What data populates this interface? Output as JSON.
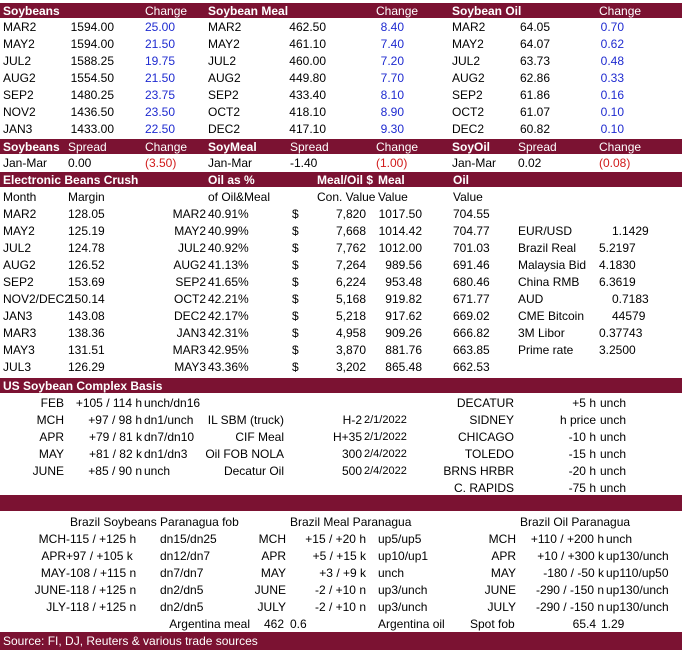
{
  "futures": {
    "headers": [
      "Soybeans",
      "Change",
      "Soybean Meal",
      "Change",
      "Soybean Oil",
      "Change"
    ],
    "soybeans": [
      [
        "MAR2",
        "1594.00",
        "25.00"
      ],
      [
        "MAY2",
        "1594.00",
        "21.50"
      ],
      [
        "JUL2",
        "1588.25",
        "19.75"
      ],
      [
        "AUG2",
        "1554.50",
        "21.50"
      ],
      [
        "SEP2",
        "1480.25",
        "23.75"
      ],
      [
        "NOV2",
        "1436.50",
        "23.50"
      ],
      [
        "JAN3",
        "1433.00",
        "22.50"
      ]
    ],
    "meal": [
      [
        "MAR2",
        "462.50",
        "8.40"
      ],
      [
        "MAY2",
        "461.10",
        "7.40"
      ],
      [
        "JUL2",
        "460.00",
        "7.20"
      ],
      [
        "AUG2",
        "449.80",
        "7.70"
      ],
      [
        "SEP2",
        "433.40",
        "8.10"
      ],
      [
        "OCT2",
        "418.10",
        "8.90"
      ],
      [
        "DEC2",
        "417.10",
        "9.30"
      ]
    ],
    "oil": [
      [
        "MAR2",
        "64.05",
        "0.70"
      ],
      [
        "MAY2",
        "64.07",
        "0.62"
      ],
      [
        "JUL2",
        "63.73",
        "0.48"
      ],
      [
        "AUG2",
        "62.86",
        "0.33"
      ],
      [
        "SEP2",
        "61.86",
        "0.16"
      ],
      [
        "OCT2",
        "61.07",
        "0.10"
      ],
      [
        "DEC2",
        "60.82",
        "0.10"
      ]
    ]
  },
  "spreads": {
    "headers": [
      "Soybeans",
      "Spread",
      "Change",
      "SoyMeal",
      "Spread",
      "Change",
      "SoyOil",
      "Spread",
      "Change"
    ],
    "row": [
      "Jan-Mar",
      "0.00",
      "(3.50)",
      "Jan-Mar",
      "-1.40",
      "(1.00)",
      "Jan-Mar",
      "0.02",
      "(0.08)"
    ]
  },
  "crush": {
    "title": "Electronic Beans Crush",
    "band_labels": [
      "Oil as %",
      "Meal/Oil $",
      "Meal",
      "Oil"
    ],
    "sub_labels": [
      "Month",
      "Margin",
      "of Oil&Meal",
      "Con. Value",
      "Value",
      "Value"
    ],
    "rows": [
      [
        "MAR2",
        "128.05",
        "MAR2",
        "40.91%",
        "$",
        "7,820",
        "1017.50",
        "704.55"
      ],
      [
        "MAY2",
        "125.19",
        "MAY2",
        "40.99%",
        "$",
        "7,668",
        "1014.42",
        "704.77"
      ],
      [
        "JUL2",
        "124.78",
        "JUL2",
        "40.92%",
        "$",
        "7,762",
        "1012.00",
        "701.03"
      ],
      [
        "AUG2",
        "126.52",
        "AUG2",
        "41.13%",
        "$",
        "7,264",
        "989.56",
        "691.46"
      ],
      [
        "SEP2",
        "153.69",
        "SEP2",
        "41.65%",
        "$",
        "6,224",
        "953.48",
        "680.46"
      ],
      [
        "NOV2/DEC2",
        "150.14",
        "OCT2",
        "42.21%",
        "$",
        "5,168",
        "919.82",
        "671.77"
      ],
      [
        "JAN3",
        "143.08",
        "DEC2",
        "42.17%",
        "$",
        "5,218",
        "917.62",
        "669.02"
      ],
      [
        "MAR3",
        "138.36",
        "JAN3",
        "42.31%",
        "$",
        "4,958",
        "909.26",
        "666.82"
      ],
      [
        "MAY3",
        "131.51",
        "MAR3",
        "42.95%",
        "$",
        "3,870",
        "881.76",
        "663.85"
      ],
      [
        "JUL3",
        "126.29",
        "MAY3",
        "43.36%",
        "$",
        "3,202",
        "865.48",
        "662.53"
      ]
    ],
    "markets": [
      [
        "EUR/USD",
        "1.1429"
      ],
      [
        "Brazil Real",
        "5.2197"
      ],
      [
        "Malaysia Bid",
        "4.1830"
      ],
      [
        "China RMB",
        "6.3619"
      ],
      [
        "AUD",
        "0.7183"
      ],
      [
        "CME Bitcoin",
        "44579"
      ],
      [
        "3M Libor",
        "0.37743"
      ],
      [
        "Prime rate",
        "3.2500"
      ]
    ]
  },
  "basis": {
    "title": "US Soybean Complex Basis",
    "left": [
      [
        "FEB",
        "+105 / 114 h",
        "unch/dn16"
      ],
      [
        "MCH",
        "+97 / 98 h",
        "dn1/unch"
      ],
      [
        "APR",
        "+79 / 81 k",
        "dn7/dn10"
      ],
      [
        "MAY",
        "+81 / 82 k",
        "dn1/dn3"
      ],
      [
        "JUNE",
        "+85 / 90 n",
        "unch"
      ]
    ],
    "middle": [
      [
        "IL SBM (truck)",
        "H-2",
        "2/1/2022"
      ],
      [
        "CIF Meal",
        "H+35",
        "2/1/2022"
      ],
      [
        "Oil FOB NOLA",
        "300",
        "2/4/2022"
      ],
      [
        "Decatur Oil",
        "500",
        "2/4/2022"
      ]
    ],
    "right": [
      [
        "DECATUR",
        "+5 h",
        "unch"
      ],
      [
        "SIDNEY",
        "h price",
        "unch"
      ],
      [
        "CHICAGO",
        "-10 h",
        "unch"
      ],
      [
        "TOLEDO",
        "-15 h",
        "unch"
      ],
      [
        "BRNS HRBR",
        "-20 h",
        "unch"
      ],
      [
        "C. RAPIDS",
        "-75 h",
        "unch"
      ]
    ]
  },
  "brazil": {
    "titles": [
      "Brazil Soybeans Paranagua fob",
      "Brazil Meal Paranagua",
      "Brazil Oil Paranagua"
    ],
    "soy": [
      [
        "MCH",
        "-115 / +125 h",
        "dn15/dn25"
      ],
      [
        "APR",
        "+97 / +105 k",
        "dn12/dn7"
      ],
      [
        "MAY",
        "-108 / +115 n",
        "dn7/dn7"
      ],
      [
        "JUNE",
        "-118 / +125 n",
        "dn2/dn5"
      ],
      [
        "JLY",
        "-118 / +125 n",
        "dn2/dn5"
      ]
    ],
    "meal": [
      [
        "MCH",
        "+15 / +20 h",
        "up5/up5"
      ],
      [
        "APR",
        "+5 / +15 k",
        "up10/up1"
      ],
      [
        "MAY",
        "+3 / +9 k",
        "unch"
      ],
      [
        "JUNE",
        "-2 / +10 n",
        "up3/unch"
      ],
      [
        "JULY",
        "-2 / +10 n",
        "up3/unch"
      ]
    ],
    "oil": [
      [
        "MCH",
        "+110 / +200 h",
        "unch"
      ],
      [
        "APR",
        "+10 / +300 k",
        "up130/unch"
      ],
      [
        "MAY",
        "-180 / -50 k",
        "up110/up50"
      ],
      [
        "JUNE",
        "-290 / -150 n",
        "up130/unch"
      ],
      [
        "JULY",
        "-290 / -150 n",
        "up130/unch"
      ]
    ],
    "argentina": [
      "Argentina meal",
      "462",
      "0.6",
      "Argentina oil",
      "Spot fob",
      "65.4",
      "1.29"
    ]
  },
  "footer": "Source: FI, DJ, Reuters & various trade sources"
}
